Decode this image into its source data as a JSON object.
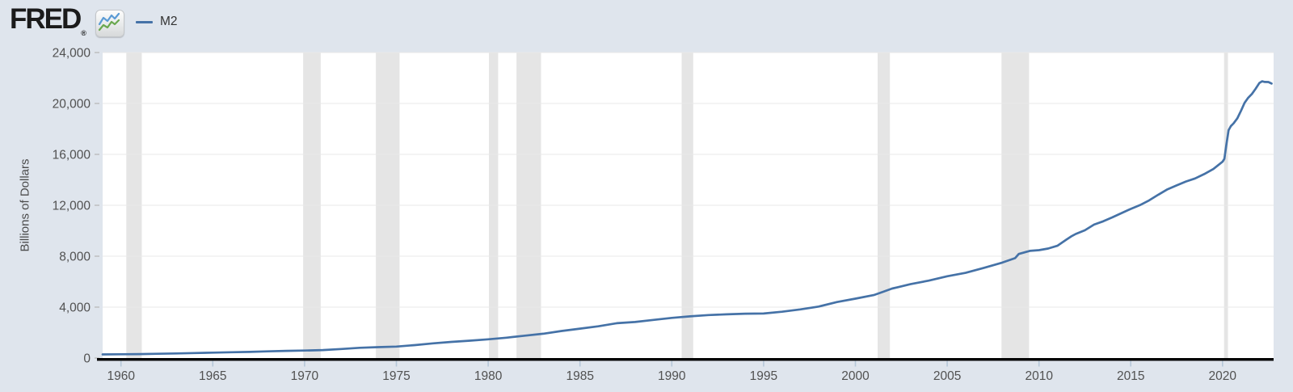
{
  "header": {
    "brand": "FRED",
    "registered": "®",
    "legend": {
      "series_label": "M2"
    }
  },
  "colors": {
    "page_bg": "#dfe5ed",
    "plot_bg": "#ffffff",
    "recession_band": "#e5e5e5",
    "gridline": "#e9e9e9",
    "line": "#4572a7",
    "axis_line": "#000000",
    "tick_label_text": "#515151",
    "x_tick_mark": "#b5c7d9",
    "y_tick_mark": "#b9b9b9",
    "logo_icon_blue": "#5b9bd5",
    "logo_icon_green": "#6aa84f"
  },
  "chart_data": {
    "type": "line",
    "title": "",
    "xlabel": "",
    "ylabel": "Billions of Dollars",
    "legend_position": "top-left",
    "grid": "horizontal",
    "xlim": [
      1959.0,
      2022.78
    ],
    "ylim": [
      0,
      24000
    ],
    "x_ticks": [
      {
        "value": 1960,
        "label": "1960"
      },
      {
        "value": 1965,
        "label": "1965"
      },
      {
        "value": 1970,
        "label": "1970"
      },
      {
        "value": 1975,
        "label": "1975"
      },
      {
        "value": 1980,
        "label": "1980"
      },
      {
        "value": 1985,
        "label": "1985"
      },
      {
        "value": 1990,
        "label": "1990"
      },
      {
        "value": 1995,
        "label": "1995"
      },
      {
        "value": 2000,
        "label": "2000"
      },
      {
        "value": 2005,
        "label": "2005"
      },
      {
        "value": 2010,
        "label": "2010"
      },
      {
        "value": 2015,
        "label": "2015"
      },
      {
        "value": 2020,
        "label": "2020"
      }
    ],
    "y_ticks": [
      {
        "value": 0,
        "label": "0"
      },
      {
        "value": 4000,
        "label": "4,000"
      },
      {
        "value": 8000,
        "label": "8,000"
      },
      {
        "value": 12000,
        "label": "12,000"
      },
      {
        "value": 16000,
        "label": "16,000"
      },
      {
        "value": 20000,
        "label": "20,000"
      },
      {
        "value": 24000,
        "label": "24,000"
      }
    ],
    "recession_bands": [
      [
        1960.29,
        1961.13
      ],
      [
        1969.92,
        1970.88
      ],
      [
        1973.88,
        1975.17
      ],
      [
        1980.04,
        1980.54
      ],
      [
        1981.54,
        1982.88
      ],
      [
        1990.54,
        1991.17
      ],
      [
        2001.21,
        2001.88
      ],
      [
        2007.96,
        2009.46
      ],
      [
        2020.08,
        2020.29
      ]
    ],
    "series": [
      {
        "name": "M2",
        "color": "#4572a7",
        "points": [
          [
            1959.0,
            287
          ],
          [
            1960,
            298
          ],
          [
            1961,
            312
          ],
          [
            1962,
            336
          ],
          [
            1963,
            363
          ],
          [
            1964,
            394
          ],
          [
            1965,
            425
          ],
          [
            1966,
            459
          ],
          [
            1967,
            481
          ],
          [
            1968,
            525
          ],
          [
            1969,
            567
          ],
          [
            1970,
            588
          ],
          [
            1971,
            628
          ],
          [
            1972,
            712
          ],
          [
            1973,
            805
          ],
          [
            1974,
            857
          ],
          [
            1975,
            903
          ],
          [
            1976,
            1019
          ],
          [
            1977,
            1154
          ],
          [
            1978,
            1272
          ],
          [
            1979,
            1367
          ],
          [
            1980,
            1475
          ],
          [
            1981,
            1601
          ],
          [
            1982,
            1756
          ],
          [
            1983,
            1911
          ],
          [
            1984,
            2127
          ],
          [
            1985,
            2310
          ],
          [
            1986,
            2497
          ],
          [
            1987,
            2734
          ],
          [
            1988,
            2832
          ],
          [
            1989,
            2995
          ],
          [
            1990,
            3158
          ],
          [
            1991,
            3278
          ],
          [
            1992,
            3379
          ],
          [
            1993,
            3432
          ],
          [
            1994,
            3484
          ],
          [
            1995,
            3497
          ],
          [
            1996,
            3640
          ],
          [
            1997,
            3823
          ],
          [
            1998,
            4046
          ],
          [
            1999,
            4401
          ],
          [
            2000,
            4667
          ],
          [
            2001,
            4945
          ],
          [
            2001.5,
            5200
          ],
          [
            2002,
            5463
          ],
          [
            2002.3,
            5560
          ],
          [
            2003,
            5801
          ],
          [
            2004,
            6083
          ],
          [
            2005,
            6428
          ],
          [
            2006,
            6691
          ],
          [
            2007,
            7085
          ],
          [
            2008,
            7499
          ],
          [
            2008.7,
            7850
          ],
          [
            2008.9,
            8180
          ],
          [
            2009.2,
            8300
          ],
          [
            2009.5,
            8420
          ],
          [
            2010,
            8478
          ],
          [
            2010.5,
            8603
          ],
          [
            2011,
            8818
          ],
          [
            2011.5,
            9308
          ],
          [
            2011.75,
            9550
          ],
          [
            2012,
            9744
          ],
          [
            2012.5,
            10035
          ],
          [
            2013,
            10482
          ],
          [
            2013.5,
            10740
          ],
          [
            2014,
            11052
          ],
          [
            2014.5,
            11390
          ],
          [
            2015,
            11712
          ],
          [
            2015.5,
            12010
          ],
          [
            2016,
            12388
          ],
          [
            2016.5,
            12830
          ],
          [
            2017,
            13255
          ],
          [
            2017.5,
            13560
          ],
          [
            2018,
            13868
          ],
          [
            2018.5,
            14110
          ],
          [
            2019,
            14448
          ],
          [
            2019.5,
            14850
          ],
          [
            2020.0,
            15420
          ],
          [
            2020.1,
            15650
          ],
          [
            2020.2,
            16700
          ],
          [
            2020.33,
            17900
          ],
          [
            2020.45,
            18220
          ],
          [
            2020.6,
            18440
          ],
          [
            2020.8,
            18820
          ],
          [
            2021.0,
            19418
          ],
          [
            2021.2,
            20050
          ],
          [
            2021.4,
            20450
          ],
          [
            2021.6,
            20750
          ],
          [
            2021.8,
            21150
          ],
          [
            2022.0,
            21600
          ],
          [
            2022.15,
            21740
          ],
          [
            2022.3,
            21690
          ],
          [
            2022.5,
            21680
          ],
          [
            2022.67,
            21560
          ]
        ]
      }
    ]
  }
}
